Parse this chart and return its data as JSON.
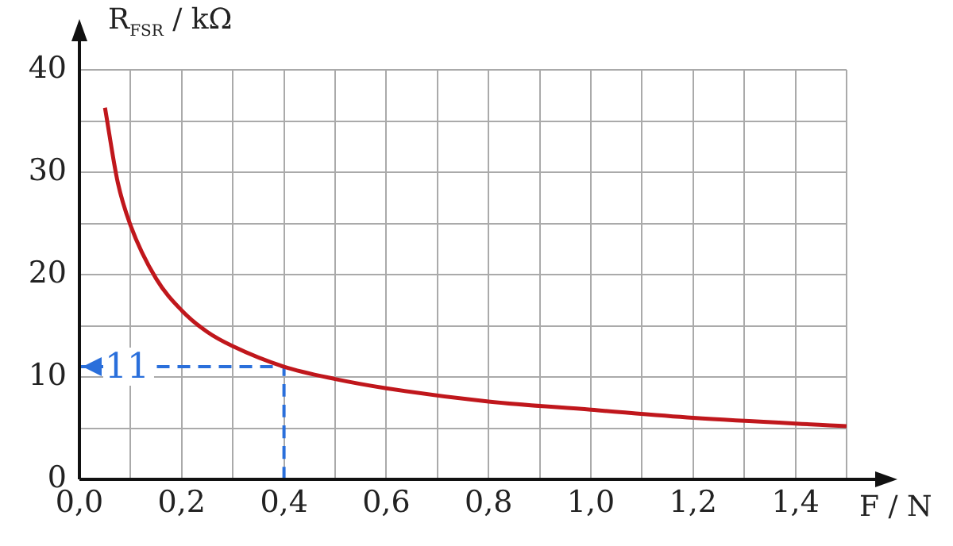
{
  "chart_data": {
    "type": "line",
    "xlabel": "F / N",
    "ylabel": "R$_{FSR}$ / kΩ",
    "xlim": [
      0,
      1.5
    ],
    "ylim": [
      0,
      40
    ],
    "xticks": [
      {
        "value": 0,
        "label": "0,0"
      },
      {
        "value": 0.1,
        "label": null
      },
      {
        "value": 0.2,
        "label": "0,2"
      },
      {
        "value": 0.3,
        "label": null
      },
      {
        "value": 0.4,
        "label": "0,4"
      },
      {
        "value": 0.5,
        "label": null
      },
      {
        "value": 0.6,
        "label": "0,6"
      },
      {
        "value": 0.7,
        "label": null
      },
      {
        "value": 0.8,
        "label": "0,8"
      },
      {
        "value": 0.9,
        "label": null
      },
      {
        "value": 1.0,
        "label": "1,0"
      },
      {
        "value": 1.1,
        "label": null
      },
      {
        "value": 1.2,
        "label": "1,2"
      },
      {
        "value": 1.3,
        "label": null
      },
      {
        "value": 1.4,
        "label": "1,4"
      },
      {
        "value": 1.5,
        "label": null
      }
    ],
    "yticks": [
      0,
      {
        "value": 5,
        "label": null
      },
      10,
      {
        "value": 15,
        "label": null
      },
      20,
      {
        "value": 25,
        "label": null
      },
      30,
      {
        "value": 35,
        "label": null
      },
      40
    ],
    "grid": true,
    "marker": "none",
    "series": [
      {
        "color": "#c0171c",
        "x": [
          0.05,
          0.075,
          0.1,
          0.15,
          0.2,
          0.25,
          0.3,
          0.4,
          0.5,
          0.6,
          0.8,
          1.0,
          1.2,
          1.5
        ],
        "values": [
          36.3,
          29.0,
          24.8,
          19.6,
          16.5,
          14.4,
          13.0,
          11,
          9.8,
          8.9,
          7.6,
          6.8,
          6.0,
          5.2
        ]
      },
      {
        "color": "#2a6fdb",
        "line_style": "dashed",
        "x": [
          0.4,
          0.4,
          0
        ],
        "values": [
          0,
          11,
          11
        ]
      }
    ],
    "annotations": [
      {
        "text": "11",
        "x": 0,
        "y": 11
      }
    ]
  }
}
